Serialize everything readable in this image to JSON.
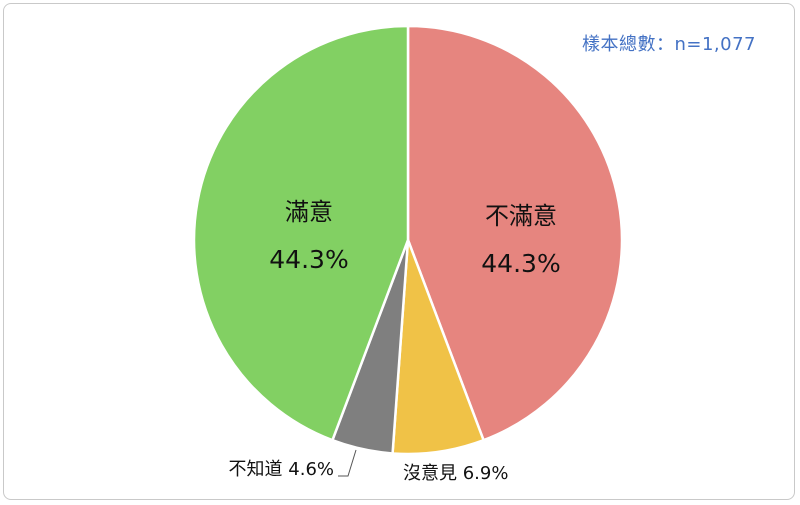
{
  "sample_note": "樣本總數：n=1,077",
  "chart_data": {
    "type": "pie",
    "title": "",
    "start": "12 o'clock",
    "direction": "clockwise",
    "slices": [
      {
        "label": "不滿意",
        "percent": "44.3%",
        "value": 44.3,
        "color": "#e6857f"
      },
      {
        "label": "沒意見",
        "percent": "6.9%",
        "value": 6.9,
        "color": "#f0c247"
      },
      {
        "label": "不知道",
        "percent": "4.6%",
        "value": 4.6,
        "color": "#7f7f7f"
      },
      {
        "label": "滿意",
        "percent": "44.3%",
        "value": 44.3,
        "color": "#82d063"
      }
    ]
  }
}
